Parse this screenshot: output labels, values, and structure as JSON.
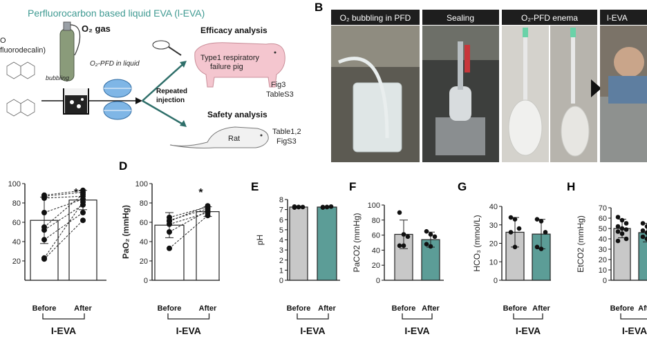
{
  "panel_a": {
    "title": "Perfluorocarbon based liquid EVA (l-EVA)",
    "left_text_1": "O",
    "left_text_2": "fluorodecalin)",
    "o2_gas": "O₂ gas",
    "bubbling": "bubbling",
    "o2_pfd": "O₂-PFD in liquid",
    "repeated": "Repeated",
    "injection": "injection",
    "efficacy_title": "Efficacy analysis",
    "pig_text_1": "Type1 respiratory",
    "pig_text_2": "failure pig",
    "fig3": "Fig3",
    "tables3": "TableS3",
    "safety_title": "Safety analysis",
    "rat_label": "Rat",
    "table12": "Table1,2",
    "figs3": "FigS3"
  },
  "panel_b": {
    "letter": "B",
    "photos": [
      {
        "label": "O₂ bubbling in PFD"
      },
      {
        "label": "Sealing"
      },
      {
        "label": "O₂-PFD enema"
      },
      {
        "label": "l-EVA"
      }
    ]
  },
  "group_label": "I-EVA",
  "chart_data": [
    {
      "id": "C",
      "type": "bar",
      "letter": "",
      "categories": [
        "Before",
        "After"
      ],
      "values": [
        62,
        83
      ],
      "err": [
        24,
        10
      ],
      "ylim": [
        0,
        100
      ],
      "yticks": [
        20,
        40,
        60,
        80,
        100
      ],
      "ylabel": "",
      "colors": [
        "#ffffff",
        "#ffffff"
      ],
      "significance": "*",
      "paired": [
        [
          22,
          62
        ],
        [
          23,
          81
        ],
        [
          42,
          70
        ],
        [
          52,
          78
        ],
        [
          55,
          89
        ],
        [
          70,
          84
        ],
        [
          85,
          87
        ],
        [
          87,
          91
        ],
        [
          88,
          93
        ]
      ]
    },
    {
      "id": "D",
      "type": "bar",
      "letter": "D",
      "categories": [
        "Before",
        "After"
      ],
      "values": [
        57,
        71
      ],
      "err": [
        13,
        5
      ],
      "ylim": [
        0,
        100
      ],
      "yticks": [
        0,
        20,
        40,
        60,
        80,
        100
      ],
      "ylabel": "PaO₂ (mmHg)",
      "colors": [
        "#ffffff",
        "#ffffff"
      ],
      "significance": "*",
      "paired": [
        [
          33,
          67
        ],
        [
          50,
          72
        ],
        [
          58,
          70
        ],
        [
          61,
          77
        ],
        [
          62,
          74
        ],
        [
          65,
          76
        ]
      ]
    },
    {
      "id": "E",
      "type": "bar",
      "letter": "E",
      "categories": [
        "Before",
        "After"
      ],
      "values": [
        7.25,
        7.25
      ],
      "err": [
        0.05,
        0.05
      ],
      "ylim": [
        0,
        8
      ],
      "yticks": [
        0,
        1,
        2,
        3,
        4,
        5,
        6,
        7,
        8
      ],
      "ylabel": "pH",
      "colors": [
        "#c8c8c8",
        "#5c9d97"
      ],
      "significance": "",
      "points": [
        [
          7.2,
          7.25,
          7.25,
          7.3,
          7.25
        ],
        [
          7.2,
          7.25,
          7.3,
          7.25,
          7.25
        ]
      ]
    },
    {
      "id": "F",
      "type": "bar",
      "letter": "F",
      "categories": [
        "Before",
        "After"
      ],
      "values": [
        61,
        54
      ],
      "err": [
        19,
        10
      ],
      "ylim": [
        0,
        100
      ],
      "yticks": [
        0,
        20,
        40,
        60,
        80,
        100
      ],
      "ylabel": "PaCO2 (mmHg)",
      "colors": [
        "#c8c8c8",
        "#5c9d97"
      ],
      "significance": "",
      "points": [
        [
          90,
          61,
          58,
          46,
          46
        ],
        [
          65,
          61,
          58,
          48,
          45
        ]
      ]
    },
    {
      "id": "G",
      "type": "bar",
      "letter": "G",
      "categories": [
        "Before",
        "After"
      ],
      "values": [
        26,
        25
      ],
      "err": [
        8,
        8
      ],
      "ylim": [
        0,
        40
      ],
      "yticks": [
        0,
        10,
        20,
        30,
        40
      ],
      "ylabel": "HCO₃ (mmol/L)",
      "colors": [
        "#c8c8c8",
        "#5c9d97"
      ],
      "significance": "",
      "points": [
        [
          34,
          33,
          28,
          26,
          18
        ],
        [
          33,
          32,
          26,
          18,
          17
        ]
      ]
    },
    {
      "id": "H",
      "type": "bar",
      "letter": "H",
      "categories": [
        "Before",
        "After"
      ],
      "values": [
        50,
        46
      ],
      "err": [
        9,
        9
      ],
      "ylim": [
        0,
        70
      ],
      "yticks": [
        0,
        10,
        20,
        30,
        40,
        50,
        60,
        70
      ],
      "ylabel": "EtCO2 (mmHg)",
      "colors": [
        "#c8c8c8",
        "#5c9d97"
      ],
      "significance": "",
      "points": [
        [
          61,
          58,
          55,
          52,
          50,
          49,
          47,
          45,
          40,
          38
        ],
        [
          55,
          52,
          50,
          48,
          46,
          44,
          42,
          40
        ]
      ]
    }
  ]
}
